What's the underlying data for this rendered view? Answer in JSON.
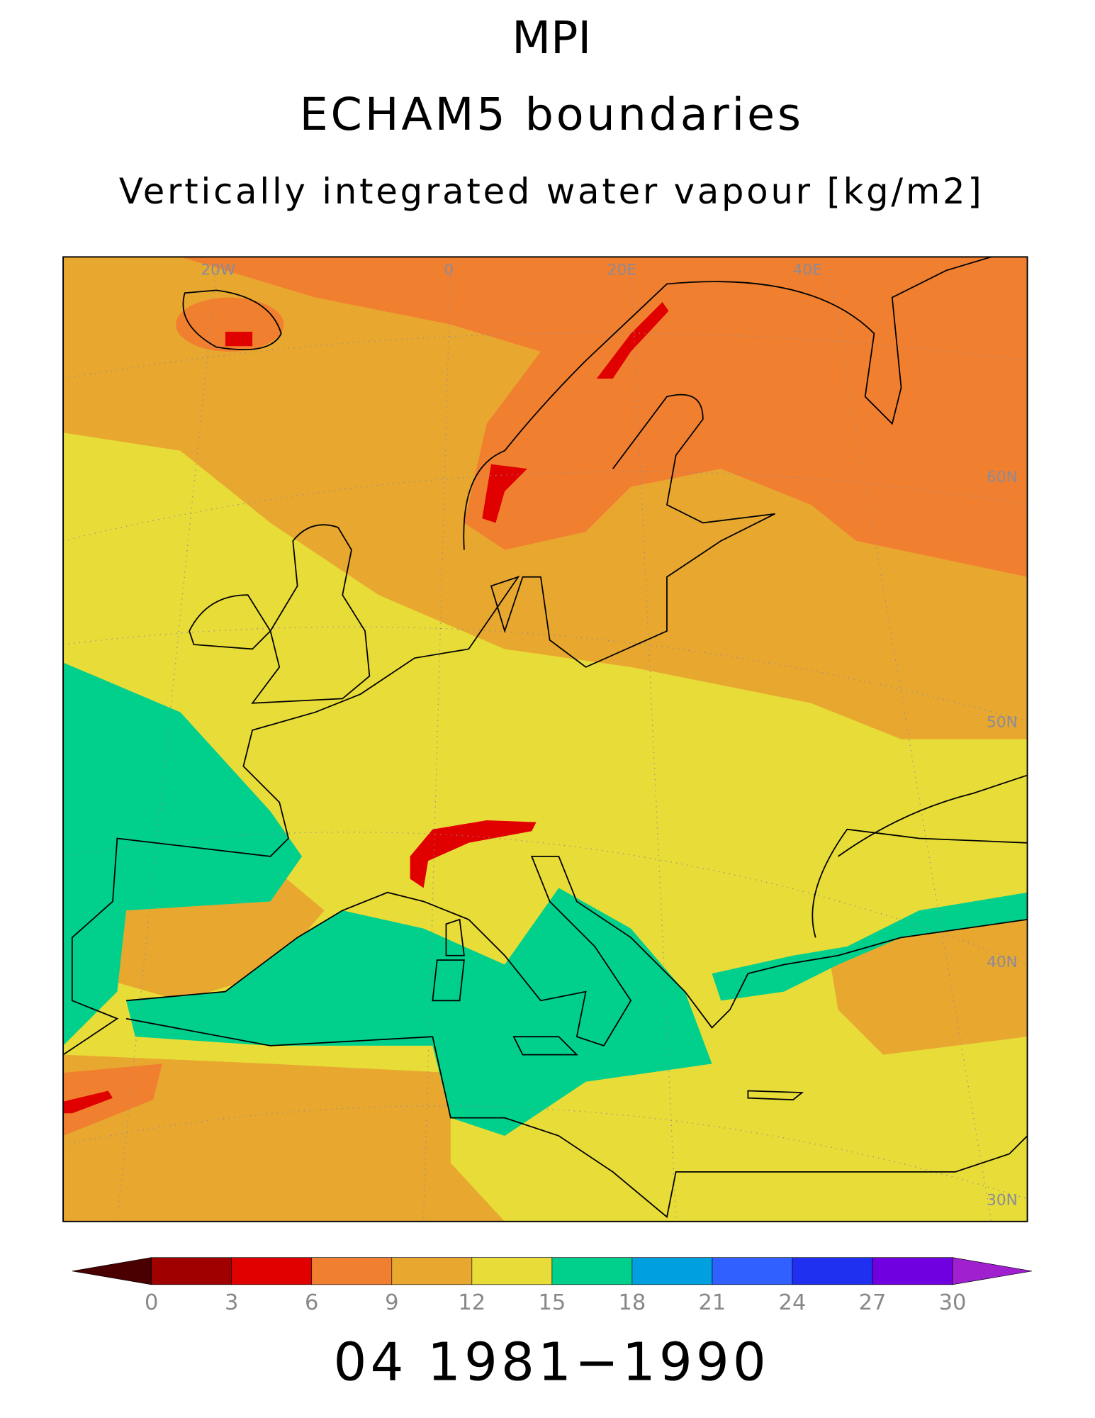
{
  "header": {
    "lines": [
      "MPI",
      "ECHAM5 boundaries",
      "Vertically integrated water vapour [kg/m2]"
    ]
  },
  "map": {
    "grid_labels": [
      "20W",
      "0",
      "20E",
      "40E",
      "60N",
      "50N",
      "40N",
      "30N"
    ]
  },
  "colorbar": {
    "ticks": [
      0,
      3,
      6,
      9,
      12,
      15,
      18,
      21,
      24,
      27,
      30
    ],
    "colors": [
      "#4a0000",
      "#a00000",
      "#e00000",
      "#f08030",
      "#e8a830",
      "#e8dc38",
      "#00d08c",
      "#00a0e0",
      "#3060ff",
      "#2030f0",
      "#7000e0",
      "#a020d0"
    ]
  },
  "footer": "04 1981−1990"
}
